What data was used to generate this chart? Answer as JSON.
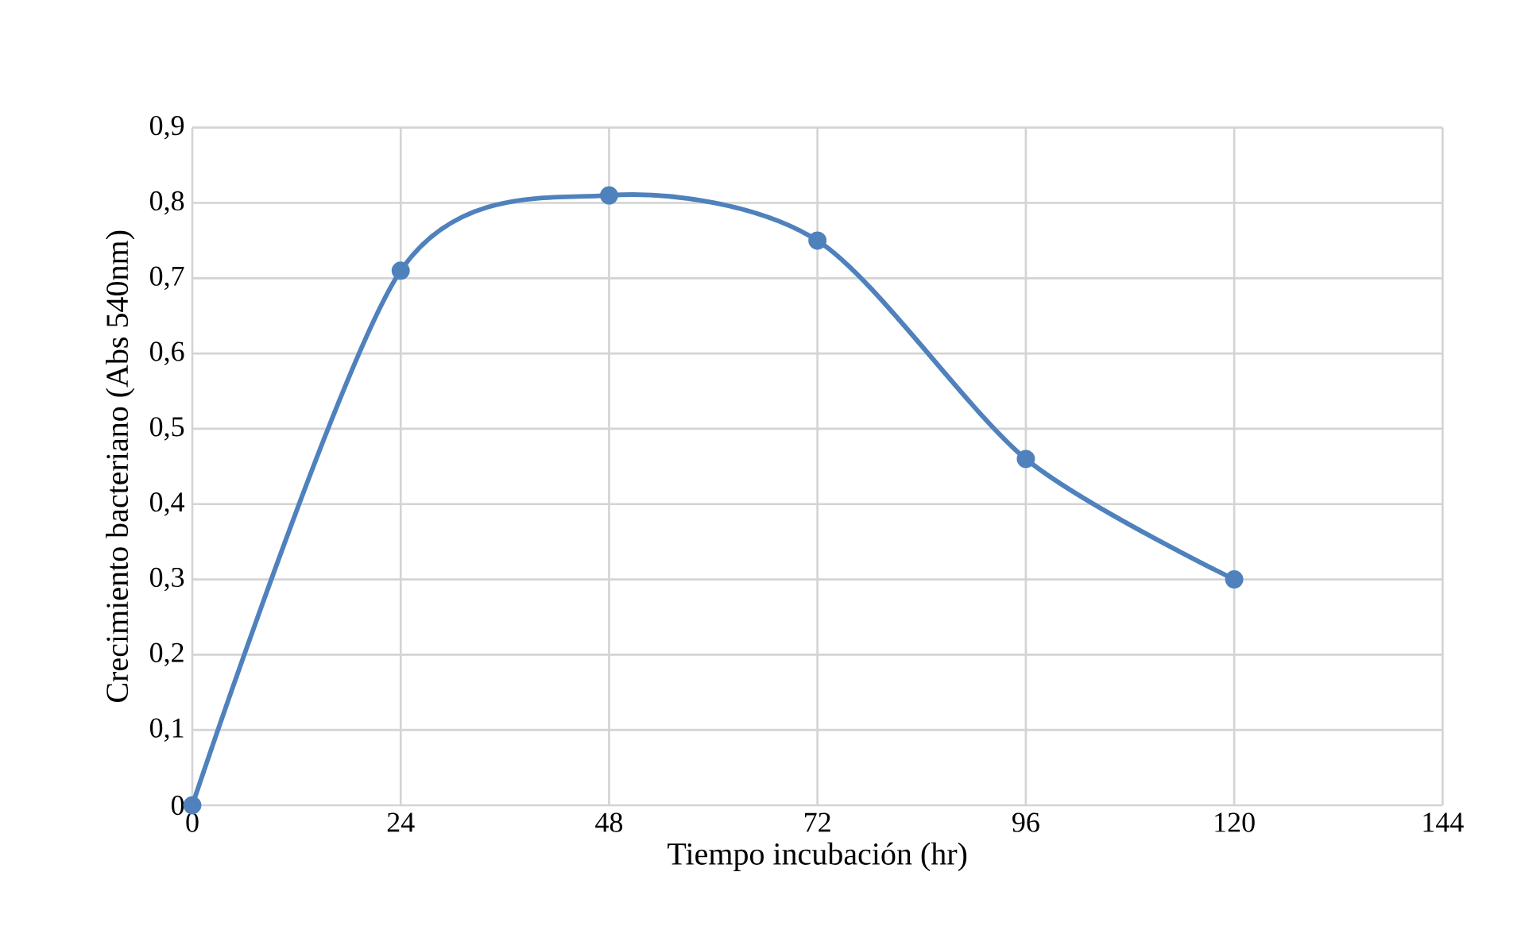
{
  "chart_data": {
    "type": "line",
    "xlabel": "Tiempo incubación (hr)",
    "ylabel": "Crecimiento bacteriano (Abs 540nm)",
    "x": [
      0,
      24,
      48,
      72,
      96,
      120
    ],
    "series": [
      {
        "color": "#4f81bd",
        "values": [
          0,
          0.71,
          0.81,
          0.75,
          0.46,
          0.3
        ]
      }
    ],
    "xlim": [
      0,
      144
    ],
    "xticks": [
      0,
      24,
      48,
      72,
      96,
      120,
      144
    ],
    "ylim": [
      0,
      0.9
    ],
    "yticks": [
      {
        "value": 0,
        "label": "0"
      },
      {
        "value": 0.1,
        "label": "0,1"
      },
      {
        "value": 0.2,
        "label": "0,2"
      },
      {
        "value": 0.3,
        "label": "0,3"
      },
      {
        "value": 0.4,
        "label": "0,4"
      },
      {
        "value": 0.5,
        "label": "0,5"
      },
      {
        "value": 0.6,
        "label": "0,6"
      },
      {
        "value": 0.7,
        "label": "0,7"
      },
      {
        "value": 0.8,
        "label": "0,8"
      },
      {
        "value": 0.9,
        "label": "0,9"
      }
    ],
    "grid": true,
    "marker": "circle",
    "line_style": "solid"
  }
}
